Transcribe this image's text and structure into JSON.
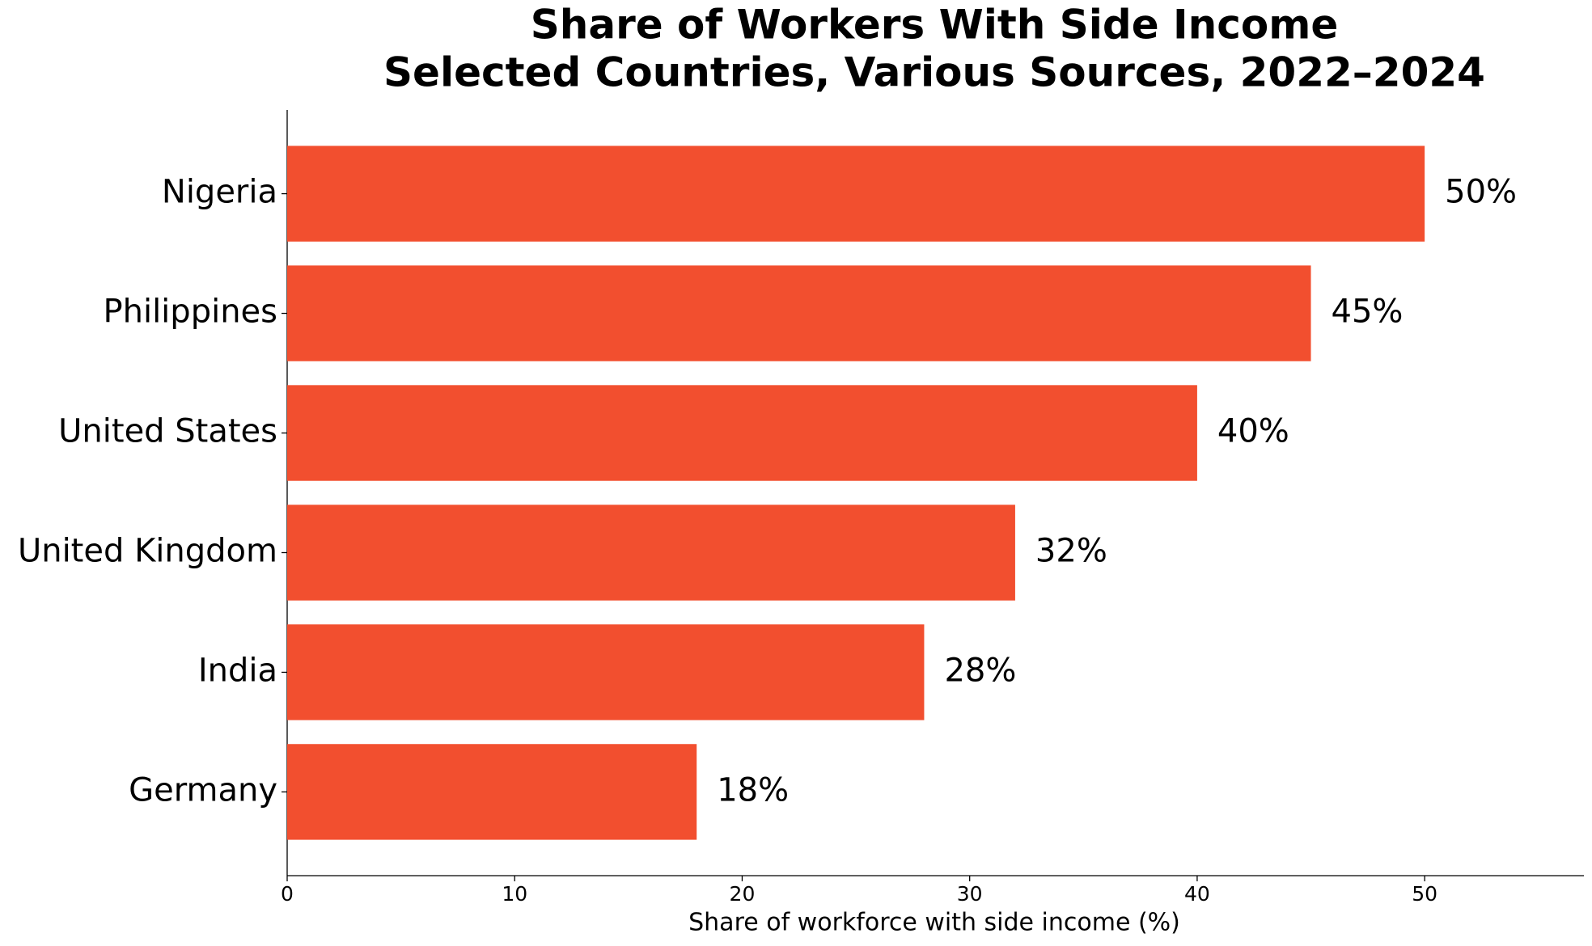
{
  "chart_data": {
    "type": "barh",
    "title": "Share of Workers With Side Income",
    "subtitle": "Selected Countries, Various Sources, 2022–2024",
    "categories": [
      "Nigeria",
      "Philippines",
      "United States",
      "United Kingdom",
      "India",
      "Germany"
    ],
    "values": [
      50,
      45,
      40,
      32,
      28,
      18
    ],
    "value_labels": [
      "50%",
      "45%",
      "40%",
      "32%",
      "28%",
      "18%"
    ],
    "color": "#f24f2f",
    "xlabel": "Share of workforce with side income (%)",
    "xlim": [
      0,
      57
    ],
    "xticks": [
      0,
      10,
      20,
      30,
      40,
      50
    ],
    "grid": false
  }
}
